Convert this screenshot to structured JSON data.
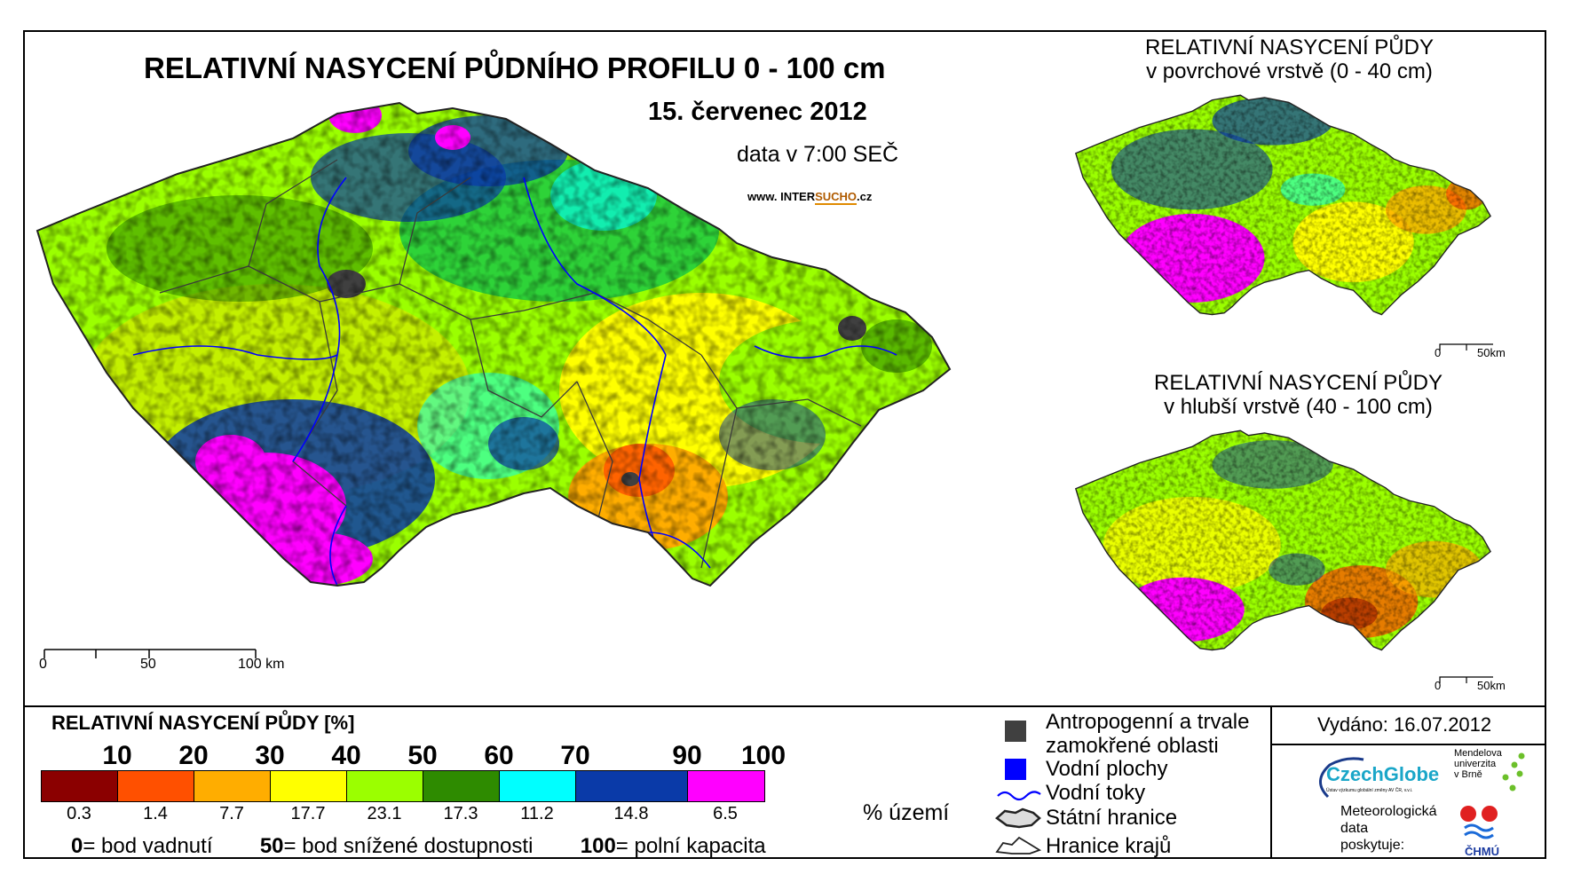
{
  "titles": {
    "main": "RELATIVNÍ NASYCENÍ PŮDNÍHO PROFILU 0 - 100 cm",
    "date": "15. červenec 2012",
    "data_time": "data v 7:00 SEČ",
    "url_prefix": "www. INTER",
    "url_accent": "SUCHO",
    "url_suffix": ".cz"
  },
  "insets": [
    {
      "title_line1": "RELATIVNÍ NASYCENÍ PŮDY",
      "title_line2": "v povrchové vrstvě (0 - 40 cm)",
      "scale_0": "0",
      "scale_50": "50km"
    },
    {
      "title_line1": "RELATIVNÍ NASYCENÍ PŮDY",
      "title_line2": "v hlubší vrstvě (40 - 100 cm)",
      "scale_0": "0",
      "scale_50": "50km"
    }
  ],
  "main_scale": {
    "l0": "0",
    "l50": "50",
    "l100": "100 km"
  },
  "legend": {
    "title": "RELATIVNÍ NASYCENÍ PŮDY [%]",
    "ramp_labels": [
      "10",
      "20",
      "30",
      "40",
      "50",
      "60",
      "70",
      "90",
      "100"
    ],
    "classes": [
      {
        "color": "#8b0000",
        "pct": "0.3"
      },
      {
        "color": "#ff5000",
        "pct": "1.4"
      },
      {
        "color": "#ffad00",
        "pct": "7.7"
      },
      {
        "color": "#ffff00",
        "pct": "17.7"
      },
      {
        "color": "#9bff00",
        "pct": "23.1"
      },
      {
        "color": "#2e8b00",
        "pct": "17.3"
      },
      {
        "color": "#00ffff",
        "pct": "11.2"
      },
      {
        "color": "#0a3aa8",
        "pct": "14.8"
      },
      {
        "color": "#ff00ff",
        "pct": "6.5"
      }
    ],
    "pct_unit": "% území",
    "def_0_num": "0",
    "def_0_text": "= bod vadnutí",
    "def_50_num": "50",
    "def_50_text": "= bod snížené dostupnosti",
    "def_100_num": "100",
    "def_100_text": "= polní kapacita"
  },
  "symbols": {
    "anthropogenic_line1": "Antropogenní a trvale",
    "anthropogenic_line2": "zamokřené oblasti",
    "water_bodies": "Vodní plochy",
    "rivers": "Vodní toky",
    "state_border": "Státní hranice",
    "region_border": "Hranice krajů",
    "anthropogenic_color": "#404040",
    "water_color": "#0000ff"
  },
  "footer": {
    "issued": "Vydáno: 16.07.2012",
    "czechglobe": "CzechGlobe",
    "czechglobe_sub": "Ústav výzkumu globální změny AV ČR, v.v.i.",
    "mendel_1": "Mendelova",
    "mendel_2": "univerzita",
    "mendel_3": "v Brně",
    "meteo_1": "Meteorologická",
    "meteo_2": "data",
    "meteo_3": "poskytuje:",
    "chmu": "ČHMÚ"
  }
}
